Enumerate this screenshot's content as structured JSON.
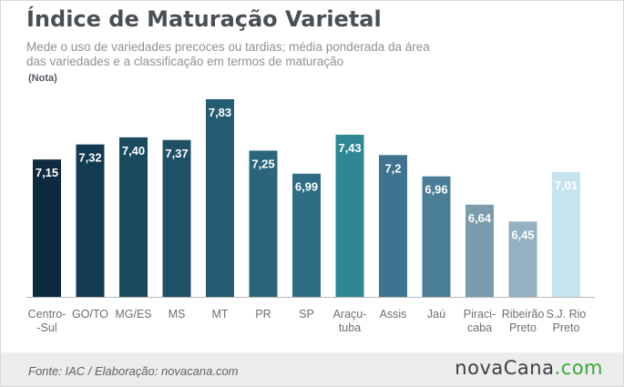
{
  "header": {
    "title": "Índice de Maturação Varietal",
    "subtitle": "Mede o uso de variedades precoces ou tardias; média ponderada da área das variedades e a classificação em termos de maturação",
    "unit": "(Nota)"
  },
  "footer": {
    "source": "Fonte: IAC / Elaboração: novacana.com",
    "logo_main": "novaCana",
    "logo_suffix": ".com"
  },
  "colors": {
    "dark": "#0d2a3e",
    "light": "#c6e4ee",
    "baseline": "#b8b8b8",
    "label": "#6b6f74"
  },
  "chart_data": {
    "type": "bar",
    "categories": [
      [
        "Centro-",
        "-Sul"
      ],
      [
        "GO/TO"
      ],
      [
        "MG/ES"
      ],
      [
        "MS"
      ],
      [
        "MT"
      ],
      [
        "PR"
      ],
      [
        "SP"
      ],
      [
        "Araçu-",
        "tuba"
      ],
      [
        "Assis"
      ],
      [
        "Jaú"
      ],
      [
        "Piraci-",
        "caba"
      ],
      [
        "Ribeirão",
        "Preto"
      ],
      [
        "S.J. Rio",
        "Preto"
      ]
    ],
    "values": [
      7.15,
      7.32,
      7.4,
      7.37,
      7.83,
      7.25,
      6.99,
      7.43,
      7.2,
      6.96,
      6.64,
      6.45,
      7.01
    ],
    "value_labels": [
      "7,15",
      "7,32",
      "7,40",
      "7,37",
      "7,83",
      "7,25",
      "6,99",
      "7,43",
      "7,2",
      "6,96",
      "6,64",
      "6,45",
      "7,01"
    ],
    "bar_colors": [
      "#0d2a3e",
      "#123a52",
      "#1a4a5e",
      "#1e5066",
      "#245d72",
      "#2a657c",
      "#2e6d84",
      "#2f8796",
      "#3f7491",
      "#4a7e98",
      "#7a9cad",
      "#93b1c0",
      "#c6e4ee"
    ],
    "label_colors": [
      "#ffffff",
      "#ffffff",
      "#ffffff",
      "#ffffff",
      "#ffffff",
      "#ffffff",
      "#ffffff",
      "#ffffff",
      "#ffffff",
      "#ffffff",
      "#ffffff",
      "#ffffff",
      "#ffffff"
    ],
    "title": "Índice de Maturação Varietal",
    "xlabel": "",
    "ylabel": "(Nota)",
    "ylim": [
      5.6,
      7.83
    ],
    "grid": false,
    "legend": "none"
  }
}
